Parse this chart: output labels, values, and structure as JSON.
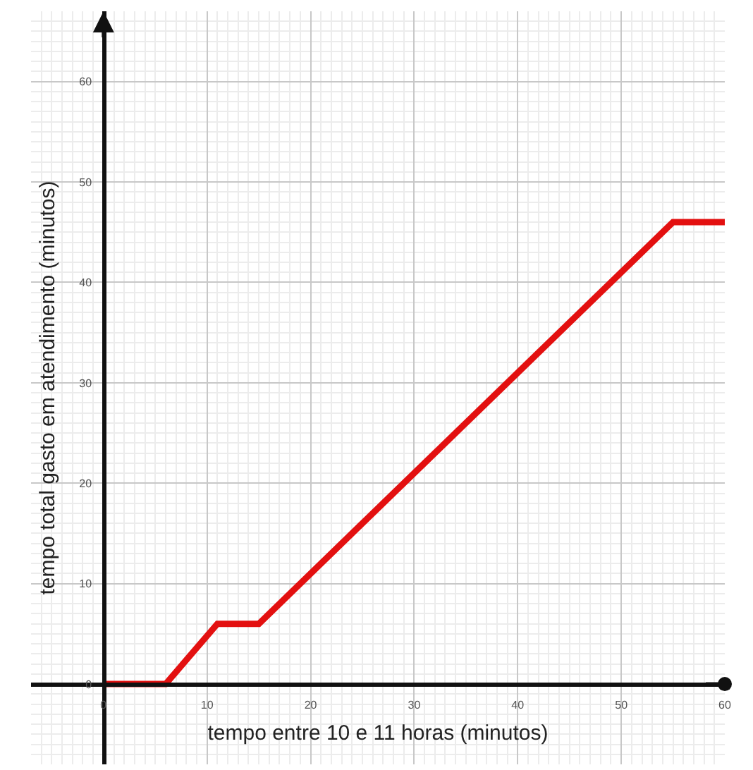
{
  "chart_data": {
    "type": "line",
    "xlabel": "tempo entre 10 e 11 horas (minutos)",
    "ylabel": "tempo total gasto em atendimento (minutos)",
    "x": [
      0,
      6,
      11,
      15,
      55,
      60
    ],
    "series": [
      {
        "color": "#e31010",
        "values": [
          0,
          0,
          6,
          6,
          46,
          46
        ]
      }
    ],
    "xlim": [
      -7,
      60
    ],
    "ylim": [
      -8,
      67
    ],
    "xticks": [
      0,
      10,
      20,
      30,
      40,
      50,
      60
    ],
    "yticks": [
      0,
      10,
      20,
      30,
      40,
      50,
      60
    ],
    "grid": true,
    "marker": "none",
    "line_style": "solid"
  }
}
